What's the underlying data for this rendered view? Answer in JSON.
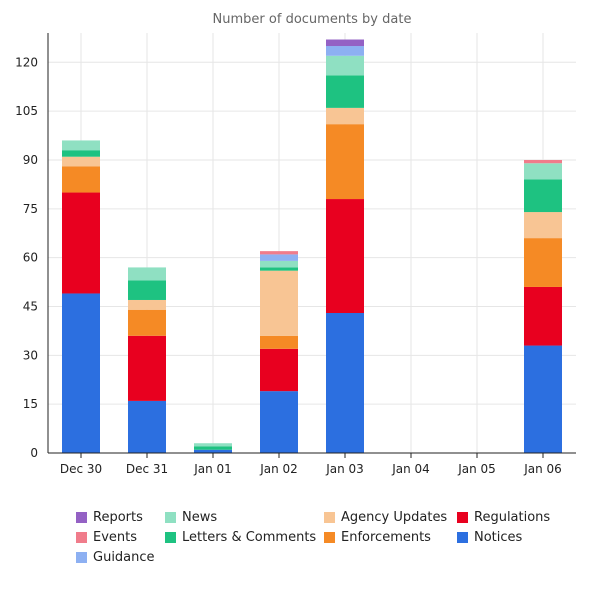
{
  "chart_data": {
    "type": "bar",
    "stacked": true,
    "title": "Number of documents by date",
    "xlabel": "",
    "ylabel": "",
    "categories": [
      "Dec 30",
      "Dec 31",
      "Jan 01",
      "Jan 02",
      "Jan 03",
      "Jan 04",
      "Jan 05",
      "Jan 06"
    ],
    "ylim": [
      0,
      129
    ],
    "yticks": [
      0,
      15,
      30,
      45,
      60,
      75,
      90,
      105,
      120
    ],
    "grid": true,
    "legend_position": "bottom",
    "series": [
      {
        "name": "Notices",
        "color": "#2C6FE0",
        "values": [
          49,
          16,
          1,
          19,
          43,
          0,
          0,
          33
        ]
      },
      {
        "name": "Regulations",
        "color": "#E8001F",
        "values": [
          31,
          20,
          0,
          13,
          35,
          0,
          0,
          18
        ]
      },
      {
        "name": "Enforcements",
        "color": "#F58A25",
        "values": [
          8,
          8,
          0,
          4,
          23,
          0,
          0,
          15
        ]
      },
      {
        "name": "Agency Updates",
        "color": "#F8C594",
        "values": [
          3,
          3,
          0,
          20,
          5,
          0,
          0,
          8
        ]
      },
      {
        "name": "Letters & Comments",
        "color": "#1EC281",
        "values": [
          2,
          6,
          1,
          1,
          10,
          0,
          0,
          10
        ]
      },
      {
        "name": "News",
        "color": "#8FE0C2",
        "values": [
          3,
          4,
          1,
          2,
          6,
          0,
          0,
          5
        ]
      },
      {
        "name": "Guidance",
        "color": "#8DB0F2",
        "values": [
          0,
          0,
          0,
          2,
          3,
          0,
          0,
          0
        ]
      },
      {
        "name": "Events",
        "color": "#F07C8B",
        "values": [
          0,
          0,
          0,
          1,
          0,
          0,
          0,
          1
        ]
      },
      {
        "name": "Reports",
        "color": "#9461C4",
        "values": [
          0,
          0,
          0,
          0,
          2,
          0,
          0,
          0
        ]
      }
    ]
  },
  "legend": {
    "items": [
      {
        "name": "Reports",
        "color": "#9461C4"
      },
      {
        "name": "Events",
        "color": "#F07C8B"
      },
      {
        "name": "Guidance",
        "color": "#8DB0F2"
      },
      {
        "name": "News",
        "color": "#8FE0C2"
      },
      {
        "name": "Letters & Comments",
        "color": "#1EC281"
      },
      {
        "name": "Agency Updates",
        "color": "#F8C594"
      },
      {
        "name": "Enforcements",
        "color": "#F58A25"
      },
      {
        "name": "Regulations",
        "color": "#E8001F"
      },
      {
        "name": "Notices",
        "color": "#2C6FE0"
      }
    ]
  }
}
